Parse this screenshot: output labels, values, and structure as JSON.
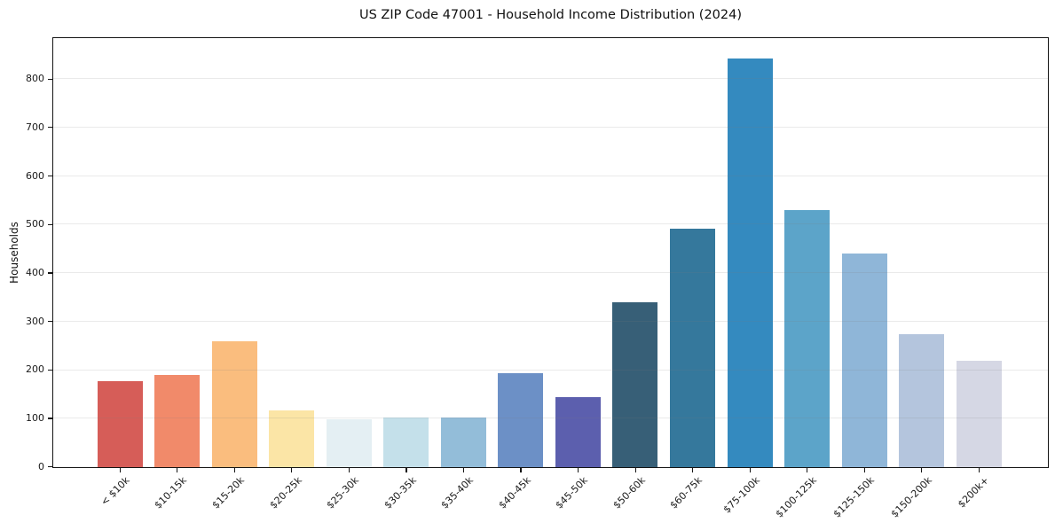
{
  "chart_data": {
    "type": "bar",
    "title": "US ZIP Code 47001 - Household Income Distribution (2024)",
    "xlabel": "",
    "ylabel": "Households",
    "categories": [
      "< $10k",
      "$10-15k",
      "$15-20k",
      "$20-25k",
      "$25-30k",
      "$30-35k",
      "$35-40k",
      "$40-45k",
      "$45-50k",
      "$50-60k",
      "$60-75k",
      "$75-100k",
      "$100-125k",
      "$125-150k",
      "$150-200k",
      "$200k+"
    ],
    "values": [
      178,
      190,
      259,
      117,
      98,
      103,
      102,
      193,
      144,
      340,
      492,
      842,
      530,
      441,
      274,
      219
    ],
    "bar_colors": [
      "#d65d58",
      "#f18a6a",
      "#fabd7e",
      "#fbe5a6",
      "#e4eff3",
      "#c4e0ea",
      "#93bdd9",
      "#6c90c6",
      "#5c5fae",
      "#375f77",
      "#35789c",
      "#348abf",
      "#5ca4c9",
      "#8fb6d8",
      "#b4c5dd",
      "#d5d7e4"
    ],
    "yticks": [
      0,
      100,
      200,
      300,
      400,
      500,
      600,
      700,
      800
    ],
    "ylim": [
      0,
      884
    ],
    "grid": "horizontal",
    "gridline_color": "rgba(127,127,127,0.16)",
    "axis_color": "#141414",
    "legend": "none"
  }
}
